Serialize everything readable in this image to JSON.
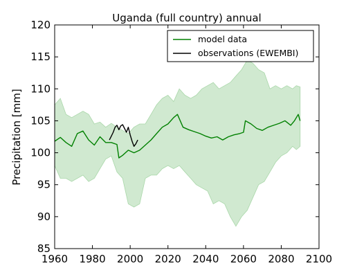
{
  "chart_data": {
    "type": "line",
    "title": "Uganda (full country) annual",
    "xlabel": "",
    "ylabel": "Precipitation [mm]",
    "xlim": [
      1960,
      2100
    ],
    "ylim": [
      85,
      120
    ],
    "xticks": [
      1960,
      1980,
      2000,
      2020,
      2040,
      2060,
      2080,
      2100
    ],
    "yticks": [
      85,
      90,
      95,
      100,
      105,
      110,
      115,
      120
    ],
    "grid": false,
    "legend_position": "top-right",
    "colors": {
      "model": "#008000",
      "band": "#a9d7a9",
      "observations": "#000000"
    },
    "series": [
      {
        "name": "model data",
        "x": [
          1960,
          1963,
          1966,
          1969,
          1972,
          1975,
          1978,
          1981,
          1984,
          1987,
          1990,
          1993,
          1994,
          1996,
          1999,
          2002,
          2005,
          2008,
          2011,
          2014,
          2017,
          2020,
          2023,
          2025,
          2028,
          2031,
          2034,
          2037,
          2040,
          2043,
          2046,
          2049,
          2052,
          2055,
          2058,
          2060,
          2061,
          2064,
          2067,
          2070,
          2073,
          2076,
          2079,
          2082,
          2085,
          2087,
          2089,
          2090
        ],
        "y": [
          101.8,
          102.4,
          101.6,
          101.0,
          103.0,
          103.4,
          102.0,
          101.2,
          102.5,
          101.6,
          101.6,
          101.3,
          99.2,
          99.6,
          100.4,
          100.0,
          100.4,
          101.2,
          102.0,
          103.0,
          104.0,
          104.5,
          105.5,
          106.0,
          104.0,
          103.6,
          103.3,
          103.0,
          102.6,
          102.3,
          102.5,
          102.0,
          102.5,
          102.8,
          103.0,
          103.2,
          105.0,
          104.5,
          103.8,
          103.5,
          104.0,
          104.3,
          104.6,
          105.0,
          104.3,
          105.0,
          106.0,
          105.0
        ]
      },
      {
        "name": "observations (EWEMBI)",
        "x": [
          1989,
          1990,
          1991,
          1992,
          1993,
          1994,
          1995,
          1996,
          1997,
          1998,
          1999,
          2000,
          2001,
          2002,
          2003,
          2004
        ],
        "y": [
          102.0,
          102.6,
          103.2,
          104.0,
          104.3,
          103.6,
          104.2,
          104.4,
          103.8,
          103.2,
          104.0,
          102.8,
          101.8,
          101.0,
          101.4,
          102.0
        ]
      }
    ],
    "band": {
      "x": [
        1960,
        1963,
        1966,
        1969,
        1972,
        1975,
        1978,
        1981,
        1984,
        1987,
        1990,
        1993,
        1996,
        1999,
        2002,
        2005,
        2008,
        2011,
        2014,
        2017,
        2020,
        2023,
        2026,
        2029,
        2032,
        2035,
        2038,
        2041,
        2044,
        2047,
        2050,
        2053,
        2056,
        2059,
        2062,
        2065,
        2068,
        2071,
        2074,
        2077,
        2080,
        2083,
        2086,
        2088,
        2090
      ],
      "upper": [
        107.5,
        108.5,
        106.0,
        105.5,
        106.0,
        106.5,
        106.0,
        104.5,
        104.8,
        104.0,
        104.6,
        104.0,
        103.5,
        103.0,
        104.0,
        104.5,
        104.5,
        106.0,
        107.5,
        108.5,
        109.0,
        108.0,
        110.0,
        109.0,
        108.5,
        109.0,
        110.0,
        110.5,
        111.0,
        110.0,
        110.5,
        111.0,
        112.0,
        113.0,
        114.5,
        114.0,
        113.0,
        112.5,
        110.0,
        110.5,
        110.0,
        110.5,
        110.0,
        110.5,
        110.3
      ],
      "lower": [
        98.0,
        96.0,
        96.0,
        95.5,
        96.0,
        96.5,
        95.5,
        96.0,
        97.5,
        99.0,
        99.5,
        97.0,
        96.0,
        92.0,
        91.5,
        92.0,
        96.0,
        96.5,
        96.5,
        97.5,
        98.0,
        97.5,
        98.0,
        97.0,
        96.0,
        95.0,
        94.5,
        94.0,
        92.0,
        92.5,
        92.0,
        90.0,
        88.5,
        90.0,
        91.0,
        93.0,
        95.0,
        95.5,
        97.0,
        98.5,
        99.5,
        100.0,
        101.0,
        100.5,
        101.0
      ]
    }
  }
}
